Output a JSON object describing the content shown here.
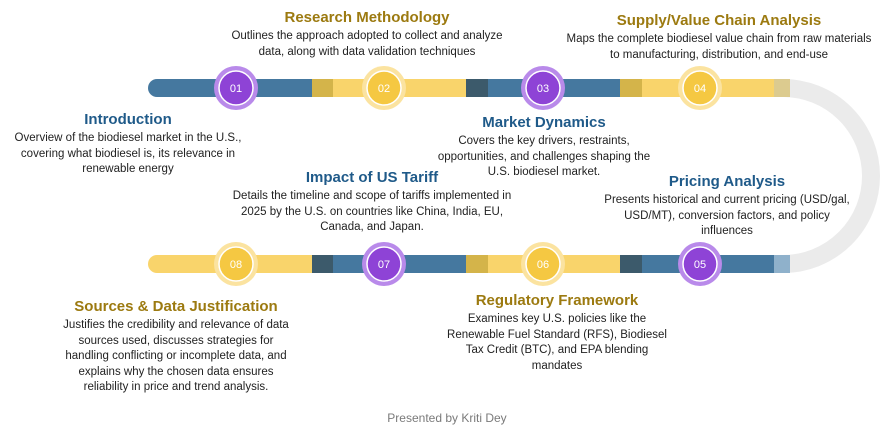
{
  "colors": {
    "blue": "#45789F",
    "yellow": "#F9D46B",
    "dark_teal": "#3C5A6B",
    "olive": "#D4B44A",
    "purple": "#8E43D6",
    "purple_light": "#B98AEA",
    "tan": "#DCCB8F",
    "light_blue": "#8FB1CB",
    "curve": "#EBEBEB",
    "title_blue": "#1F5A89",
    "title_gold": "#9C7A10"
  },
  "steps": [
    {
      "num": "01",
      "title": "Introduction",
      "desc": "Overview of the biodiesel market in the U.S., covering what biodiesel is, its relevance in renewable energy"
    },
    {
      "num": "02",
      "title": "Research Methodology",
      "desc": "Outlines the approach adopted to collect and analyze data, along with data validation techniques"
    },
    {
      "num": "03",
      "title": "Market Dynamics",
      "desc": "Covers the key drivers, restraints, opportunities, and challenges shaping the U.S. biodiesel market."
    },
    {
      "num": "04",
      "title": "Supply/Value Chain Analysis",
      "desc": "Maps the complete biodiesel value chain from raw materials to manufacturing, distribution, and end-use"
    },
    {
      "num": "05",
      "title": "Pricing Analysis",
      "desc": "Presents historical and current pricing (USD/gal, USD/MT), conversion factors, and policy influences"
    },
    {
      "num": "06",
      "title": "Regulatory Framework",
      "desc": "Examines key U.S. policies like the Renewable Fuel Standard (RFS), Biodiesel Tax Credit (BTC), and EPA blending mandates"
    },
    {
      "num": "07",
      "title": "Impact of US Tariff",
      "desc": "Details the timeline and scope of tariffs implemented in 2025 by the U.S. on countries like China, India, EU, Canada, and Japan."
    },
    {
      "num": "08",
      "title": "Sources & Data Justification",
      "desc": "Justifies the credibility and relevance of data sources used, discusses strategies for handling conflicting or incomplete data, and explains why the chosen data ensures reliability in price and trend analysis."
    }
  ],
  "footer": "Presented by Kriti Dey"
}
